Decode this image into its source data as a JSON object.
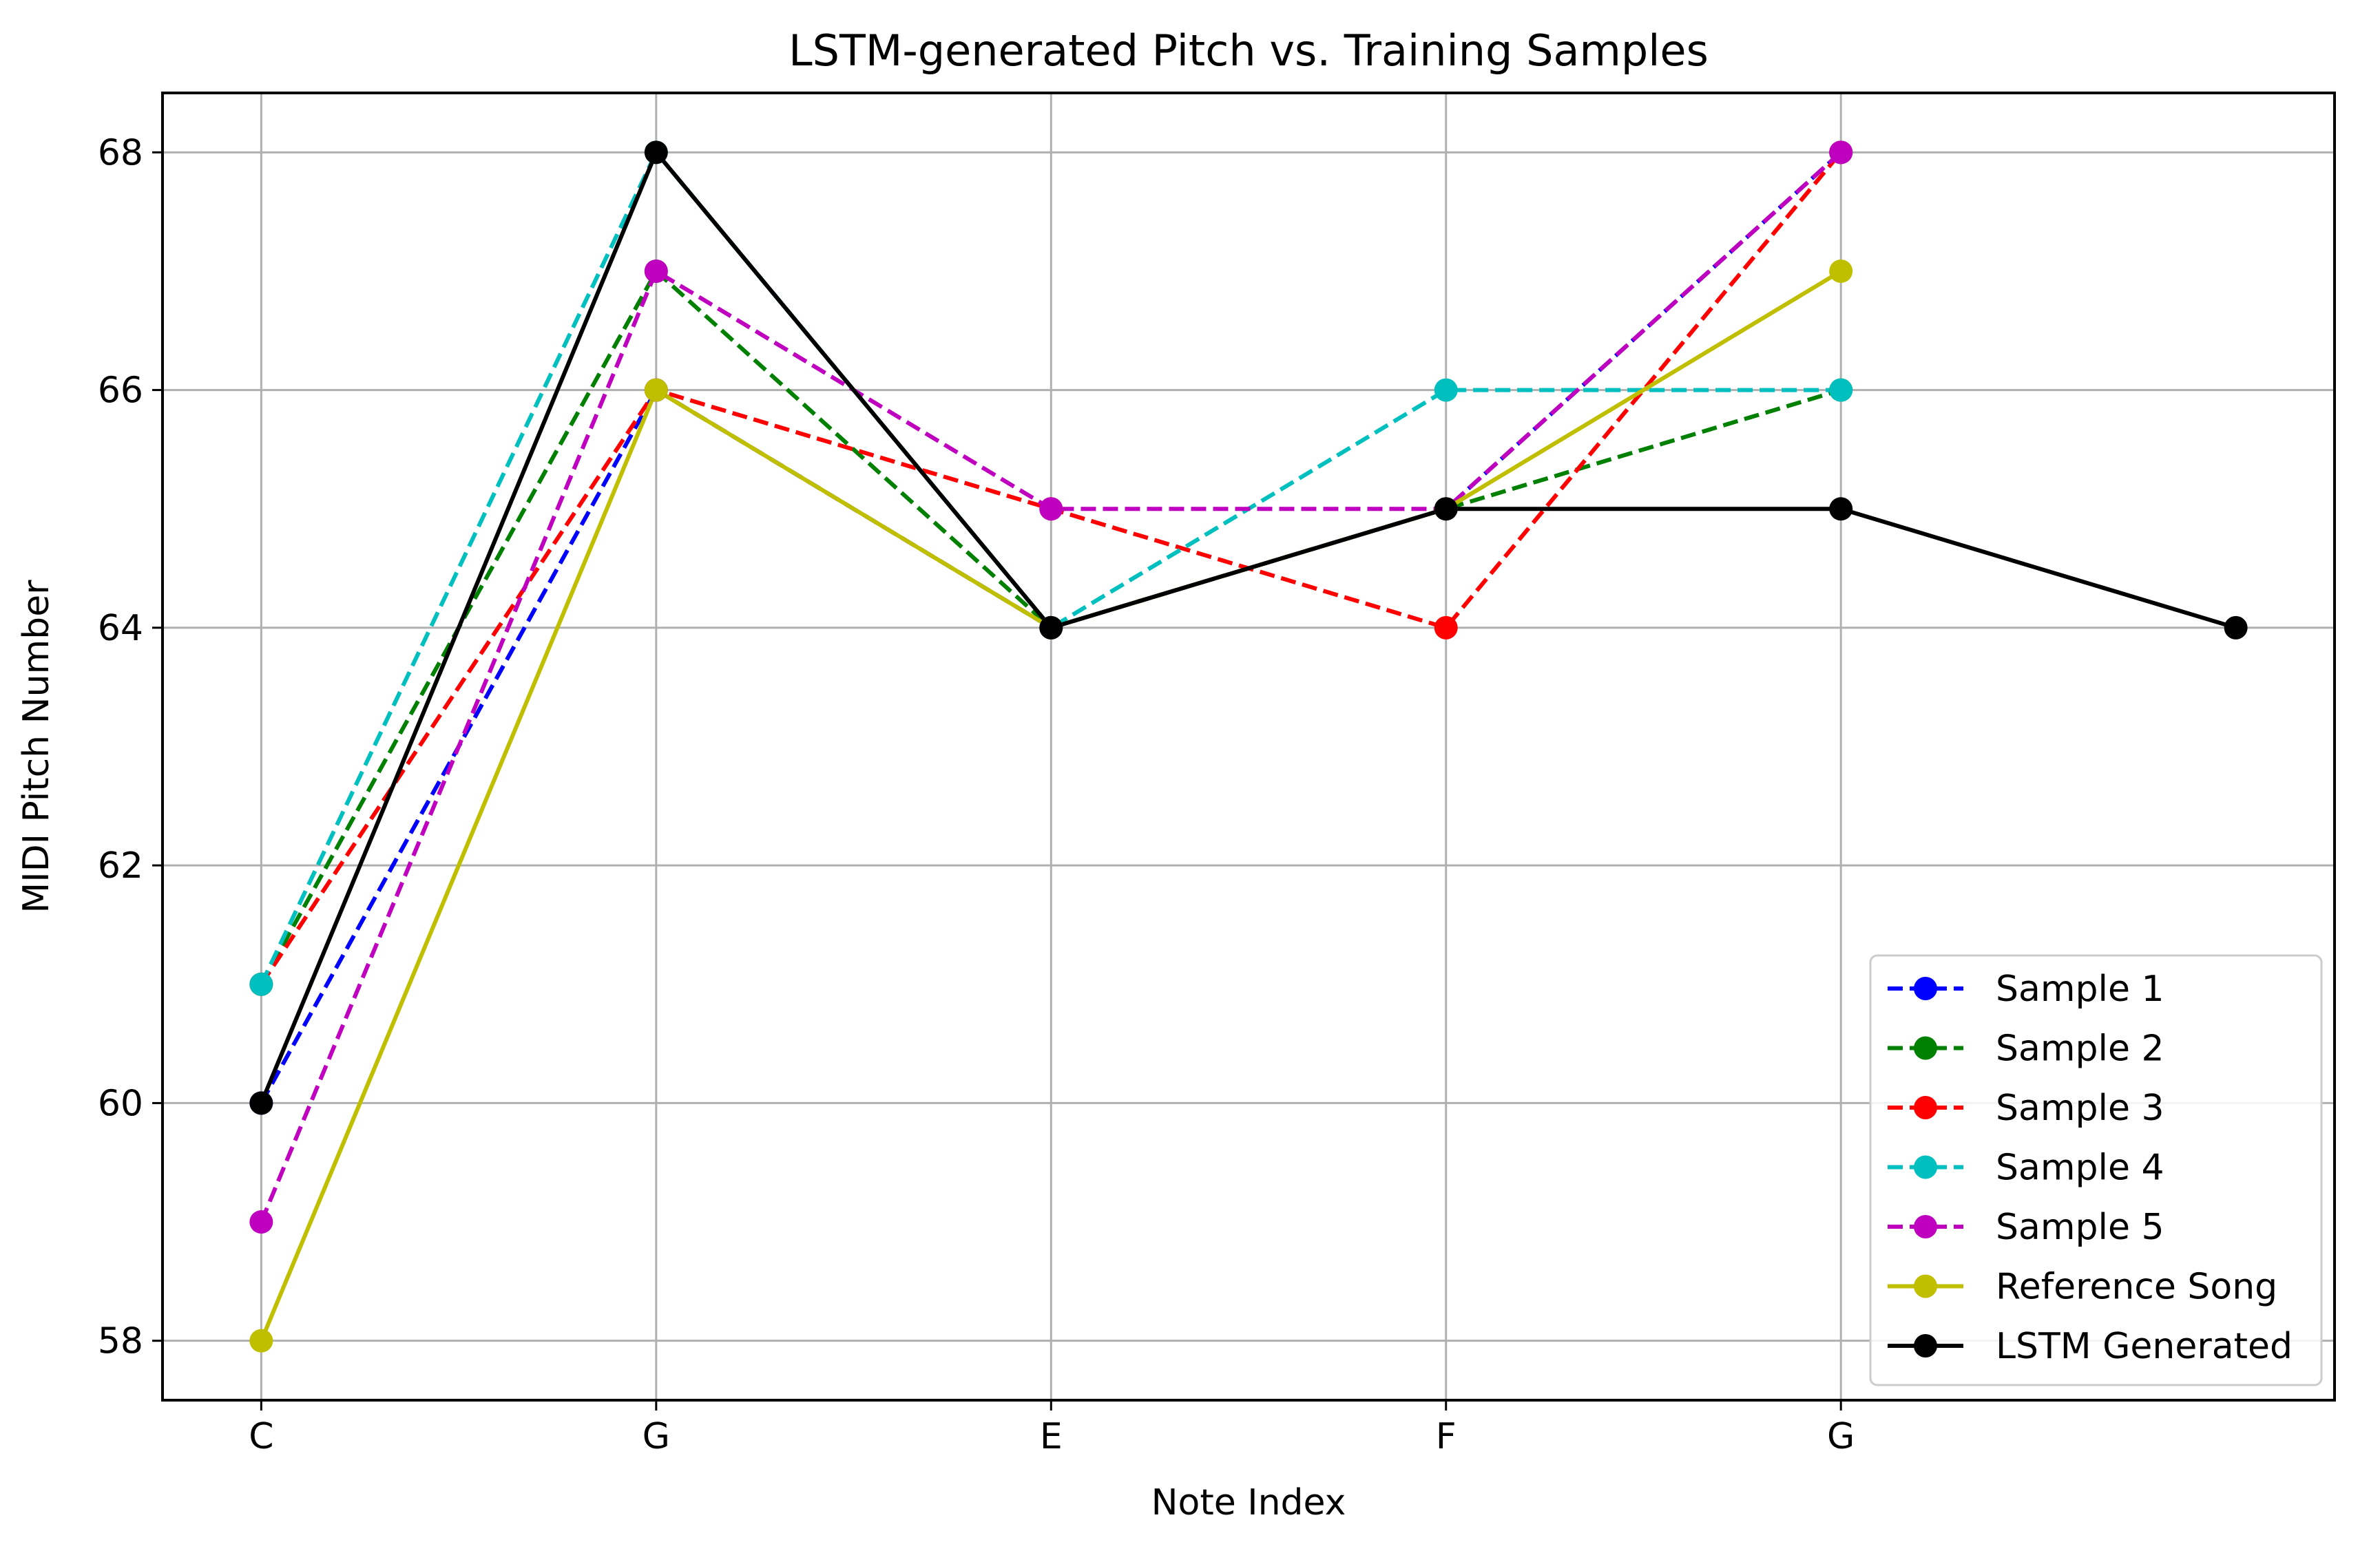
{
  "chart_data": {
    "type": "line",
    "title": "LSTM-generated Pitch vs. Training Samples",
    "xlabel": "Note Index",
    "ylabel": "MIDI Pitch Number",
    "x": [
      0,
      1,
      2,
      3,
      4,
      5
    ],
    "xtick_positions": [
      0,
      1,
      2,
      3,
      4
    ],
    "xtick_labels": [
      "C",
      "G",
      "E",
      "F",
      "G"
    ],
    "xlim": [
      -0.25,
      5.25
    ],
    "ylim": [
      57.5,
      68.5
    ],
    "yticks": [
      58,
      60,
      62,
      64,
      66,
      68
    ],
    "grid": true,
    "legend_position": "lower-right",
    "series": [
      {
        "name": "Sample 1",
        "color": "#0000ff",
        "style": "dashed",
        "x": [
          0,
          1,
          2,
          3,
          4
        ],
        "values": [
          60,
          66,
          64,
          65,
          68
        ]
      },
      {
        "name": "Sample 2",
        "color": "#008000",
        "style": "dashed",
        "x": [
          0,
          1,
          2,
          3,
          4
        ],
        "values": [
          61,
          67,
          64,
          65,
          66
        ]
      },
      {
        "name": "Sample 3",
        "color": "#ff0000",
        "style": "dashed",
        "x": [
          0,
          1,
          2,
          3,
          4
        ],
        "values": [
          61,
          66,
          65,
          64,
          68
        ]
      },
      {
        "name": "Sample 4",
        "color": "#00bfbf",
        "style": "dashed",
        "x": [
          0,
          1,
          2,
          3,
          4
        ],
        "values": [
          61,
          68,
          64,
          66,
          66
        ]
      },
      {
        "name": "Sample 5",
        "color": "#bf00bf",
        "style": "dashed",
        "x": [
          0,
          1,
          2,
          3,
          4
        ],
        "values": [
          59,
          67,
          65,
          65,
          68
        ]
      },
      {
        "name": "Reference Song",
        "color": "#bfbf00",
        "style": "solid",
        "x": [
          0,
          1,
          2,
          3,
          4
        ],
        "values": [
          58,
          66,
          64,
          65,
          67
        ]
      },
      {
        "name": "LSTM Generated",
        "color": "#000000",
        "style": "solid",
        "x": [
          0,
          1,
          2,
          3,
          4,
          5
        ],
        "values": [
          60,
          68,
          64,
          65,
          65,
          64
        ]
      }
    ]
  }
}
